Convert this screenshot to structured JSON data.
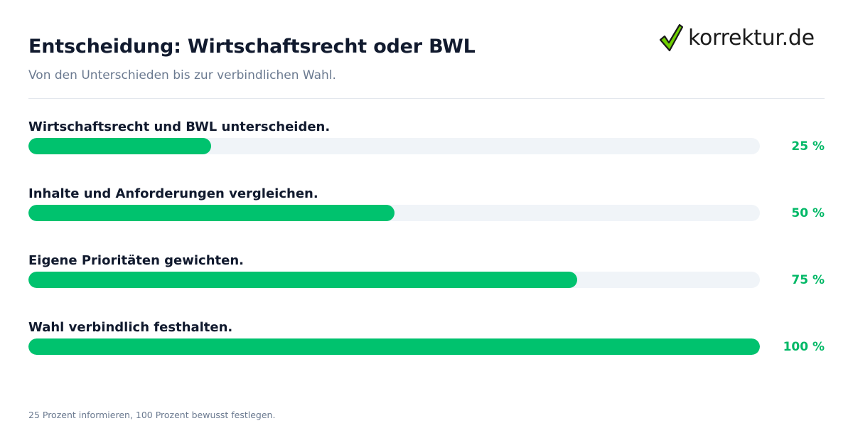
{
  "header": {
    "title": "Entscheidung: Wirtschaftsrecht oder BWL",
    "subtitle": "Von den Unterschieden bis zur verbindlichen Wahl."
  },
  "logo": {
    "text": "korrektur.de",
    "icon": "checkmark-icon",
    "check_color": "#6fd000",
    "outline_color": "#1a1a1a"
  },
  "colors": {
    "bar_fill": "#00c26e",
    "bar_track": "#f0f4f8",
    "percent_text": "#00b866"
  },
  "chart_data": {
    "type": "bar",
    "orientation": "horizontal",
    "categories": [
      "Wirtschaftsrecht und BWL unterscheiden.",
      "Inhalte und Anforderungen vergleichen.",
      "Eigene Prioritäten gewichten.",
      "Wahl verbindlich festhalten."
    ],
    "values": [
      25,
      50,
      75,
      100
    ],
    "value_labels": [
      "25 %",
      "50 %",
      "75 %",
      "100 %"
    ],
    "xlim": [
      0,
      100
    ],
    "title": "Entscheidung: Wirtschaftsrecht oder BWL",
    "subtitle": "Von den Unterschieden bis zur verbindlichen Wahl.",
    "grid": false,
    "legend": "none"
  },
  "footnote": "25 Prozent informieren, 100 Prozent bewusst festlegen."
}
